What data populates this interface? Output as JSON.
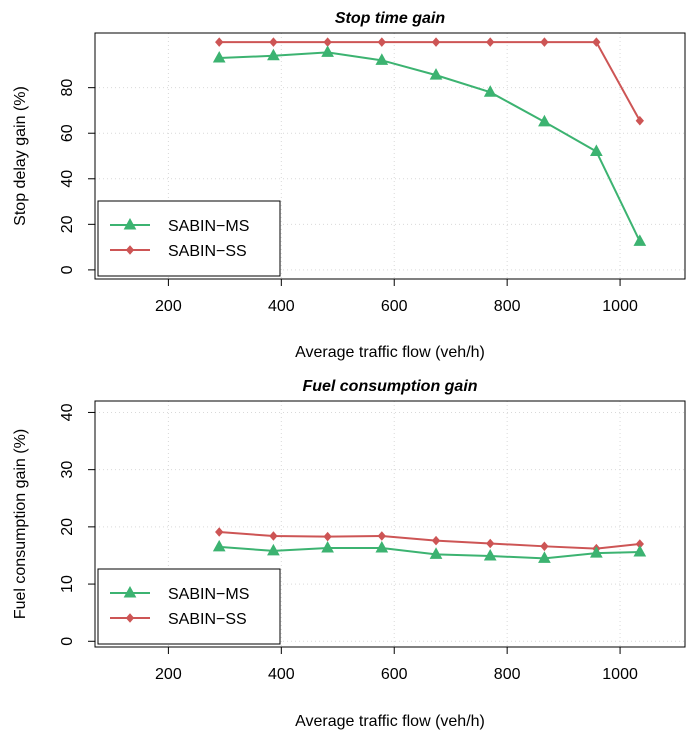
{
  "chart_data": [
    {
      "type": "line",
      "title": "Stop time gain",
      "xlabel": "Average traffic flow (veh/h)",
      "ylabel": "Stop delay gain (%)",
      "xlim": [
        70,
        1115
      ],
      "ylim": [
        -4,
        104
      ],
      "xticks": [
        200,
        400,
        600,
        800,
        1000
      ],
      "yticks": [
        0,
        20,
        40,
        60,
        80
      ],
      "grid": true,
      "legend_position": "bottom-left",
      "x": [
        290,
        386,
        482,
        578,
        674,
        770,
        866,
        958,
        1035
      ],
      "series": [
        {
          "name": "SABIN−MS",
          "color": "#3cb371",
          "marker": "triangle",
          "values": [
            93,
            94,
            95.5,
            92,
            85.5,
            78,
            65,
            52,
            12.5
          ]
        },
        {
          "name": "SABIN−SS",
          "color": "#cd5555",
          "marker": "diamond",
          "values": [
            100,
            100,
            100,
            100,
            100,
            100,
            100,
            100,
            65.5
          ]
        }
      ]
    },
    {
      "type": "line",
      "title": "Fuel consumption gain",
      "xlabel": "Average traffic flow (veh/h)",
      "ylabel": "Fuel consumption gain (%)",
      "xlim": [
        70,
        1115
      ],
      "ylim": [
        -1,
        42
      ],
      "xticks": [
        200,
        400,
        600,
        800,
        1000
      ],
      "yticks": [
        0,
        10,
        20,
        30,
        40
      ],
      "grid": true,
      "legend_position": "bottom-left",
      "x": [
        290,
        386,
        482,
        578,
        674,
        770,
        866,
        958,
        1035
      ],
      "series": [
        {
          "name": "SABIN−MS",
          "color": "#3cb371",
          "marker": "triangle",
          "values": [
            16.5,
            15.8,
            16.3,
            16.3,
            15.2,
            14.9,
            14.5,
            15.4,
            15.6
          ]
        },
        {
          "name": "SABIN−SS",
          "color": "#cd5555",
          "marker": "diamond",
          "values": [
            19.1,
            18.4,
            18.3,
            18.4,
            17.6,
            17.1,
            16.6,
            16.2,
            17.0
          ]
        }
      ]
    }
  ]
}
